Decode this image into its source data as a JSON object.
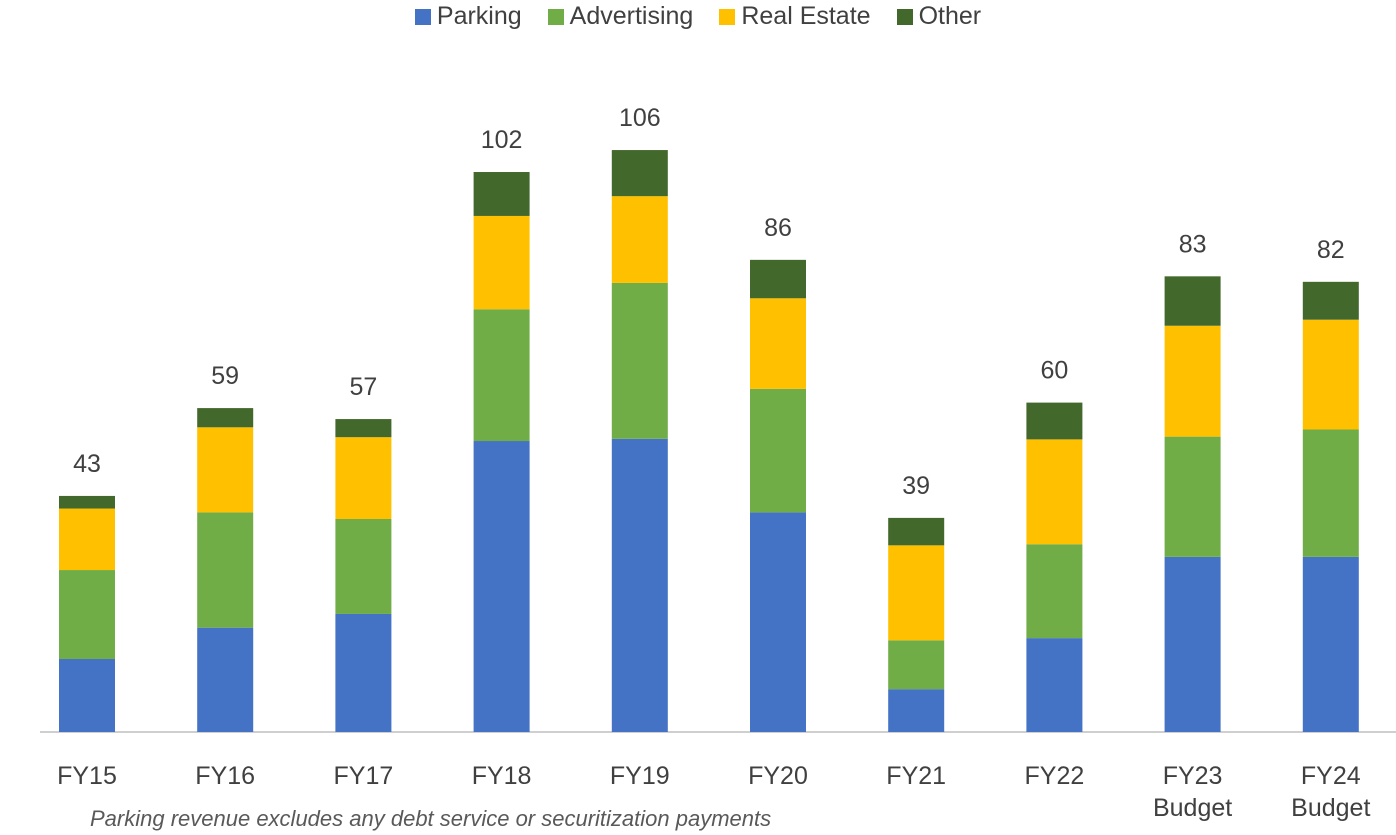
{
  "chart_data": {
    "type": "stacked_bar",
    "categories": [
      "FY15",
      "FY16",
      "FY17",
      "FY18",
      "FY19",
      "FY20",
      "FY21",
      "FY22",
      "FY23 Budget",
      "FY24 Budget"
    ],
    "series": [
      {
        "name": "Parking",
        "color": "#4472c4",
        "values": [
          13.3,
          19,
          21.5,
          53,
          53.4,
          40,
          7.8,
          17.1,
          31.9,
          31.9
        ]
      },
      {
        "name": "Advertising",
        "color": "#70ad47",
        "values": [
          16.2,
          21,
          17.3,
          24,
          28.4,
          22.5,
          8.9,
          17.1,
          21.9,
          23.2
        ]
      },
      {
        "name": "Real Estate",
        "color": "#ffc000",
        "values": [
          11.2,
          15.5,
          14.9,
          17,
          15.8,
          16.5,
          17.3,
          19.1,
          20.2,
          20
        ]
      },
      {
        "name": "Other",
        "color": "#43682b",
        "values": [
          2.3,
          3.5,
          3.3,
          8,
          8.4,
          7,
          5,
          6.7,
          9,
          6.9
        ]
      }
    ],
    "totals": [
      43,
      59,
      57,
      102,
      106,
      86,
      39,
      60,
      83,
      82
    ],
    "note": "Parking revenue excludes any debt service or securitization payments"
  }
}
